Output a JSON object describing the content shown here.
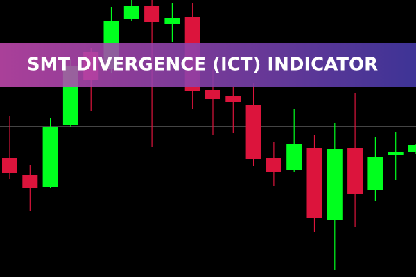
{
  "chart_data": {
    "type": "candlestick",
    "title": "SMT DIVERGENCE (ICT) INDICATOR",
    "up_color": "#00ff1e",
    "down_color": "#dc143c",
    "ylim": [
      0,
      400
    ],
    "reference_line": 217,
    "open": [
      172,
      148,
      130,
      219,
      325,
      300,
      372,
      392,
      366,
      376,
      270,
      262,
      248,
      172,
      155,
      187,
      82,
      186,
      125,
      176,
      180
    ],
    "high": [
      232,
      162,
      230,
      315,
      330,
      390,
      400,
      400,
      395,
      395,
      300,
      275,
      280,
      195,
      242,
      205,
      222,
      265,
      202,
      210,
      192
    ],
    "low": [
      142,
      95,
      128,
      217,
      240,
      295,
      370,
      188,
      340,
      242,
      205,
      208,
      160,
      132,
      152,
      65,
      10,
      72,
      110,
      140,
      178
    ],
    "close": [
      150,
      128,
      216,
      305,
      285,
      370,
      392,
      368,
      374,
      268,
      257,
      252,
      170,
      152,
      192,
      85,
      185,
      120,
      174,
      181,
      190
    ]
  }
}
